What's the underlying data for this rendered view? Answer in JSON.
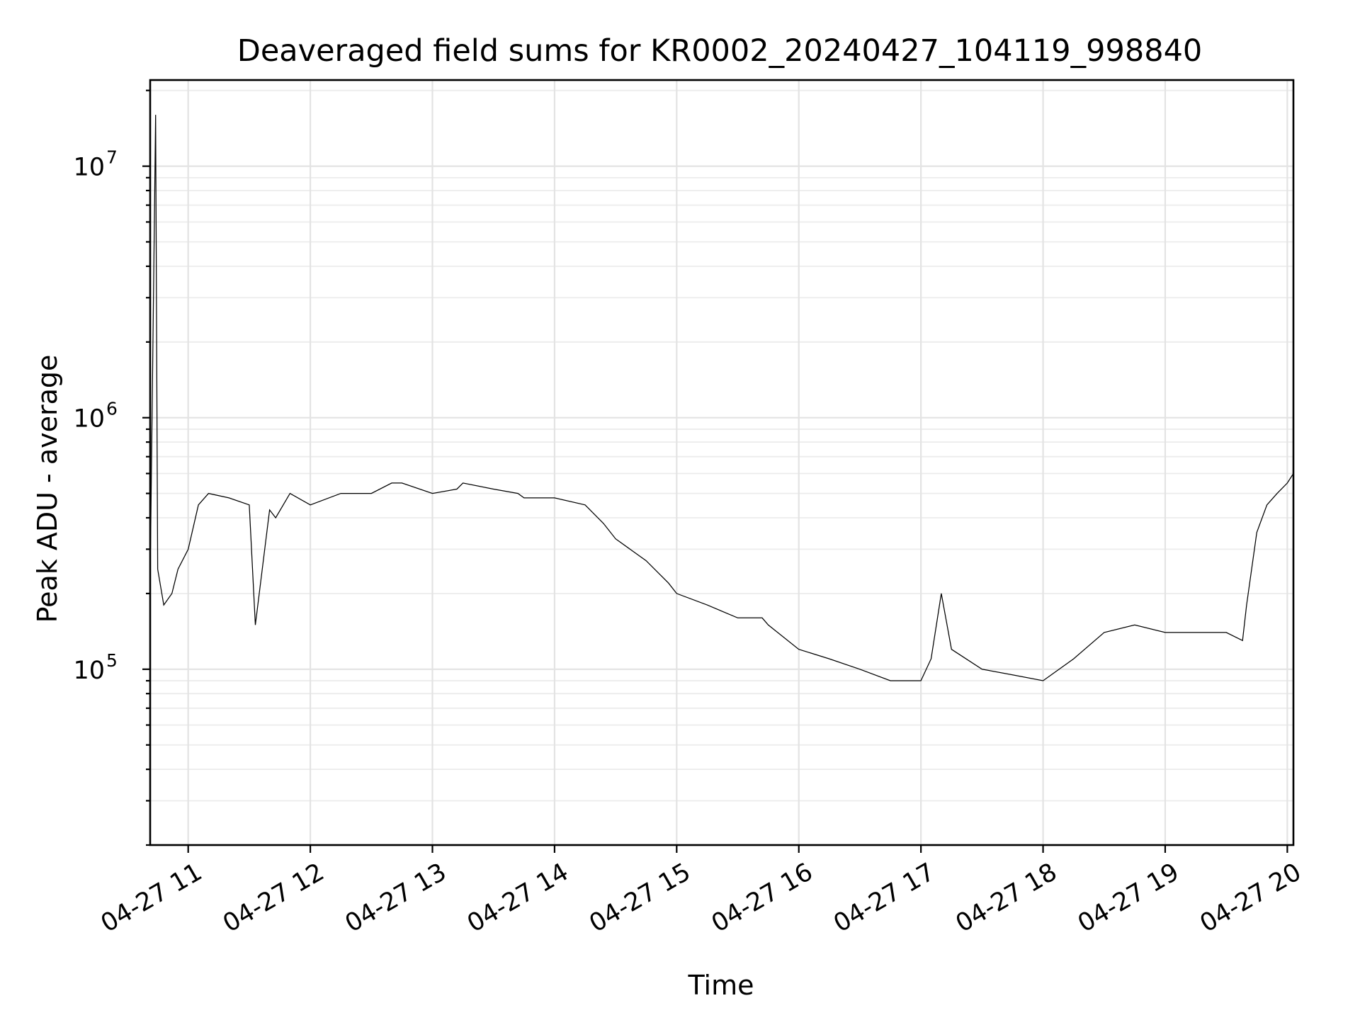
{
  "chart_data": {
    "type": "line",
    "title": "Deaveraged field sums for KR0002_20240427_104119_998840",
    "xlabel": "Time",
    "ylabel": "Peak ADU - average",
    "yscale": "log",
    "xlim": [
      "2024-04-27 10:41:19",
      "2024-04-27 20:03:00"
    ],
    "ylim": [
      20000,
      22000000
    ],
    "grid": true,
    "grid_minor": true,
    "line_color": "#000000",
    "x_ticks": [
      {
        "value": "2024-04-27 11:00",
        "label": "04-27 11"
      },
      {
        "value": "2024-04-27 12:00",
        "label": "04-27 12"
      },
      {
        "value": "2024-04-27 13:00",
        "label": "04-27 13"
      },
      {
        "value": "2024-04-27 14:00",
        "label": "04-27 14"
      },
      {
        "value": "2024-04-27 15:00",
        "label": "04-27 15"
      },
      {
        "value": "2024-04-27 16:00",
        "label": "04-27 16"
      },
      {
        "value": "2024-04-27 17:00",
        "label": "04-27 17"
      },
      {
        "value": "2024-04-27 18:00",
        "label": "04-27 18"
      },
      {
        "value": "2024-04-27 19:00",
        "label": "04-27 19"
      },
      {
        "value": "2024-04-27 20:00",
        "label": "04-27 20"
      }
    ],
    "y_ticks": [
      {
        "value": 100000,
        "base": "10",
        "exp": "5"
      },
      {
        "value": 1000000,
        "base": "10",
        "exp": "6"
      },
      {
        "value": 10000000,
        "base": "10",
        "exp": "7"
      }
    ],
    "series": [
      {
        "x": [
          "2024-04-27 10:41:30",
          "2024-04-27 10:44:00",
          "2024-04-27 10:45:00",
          "2024-04-27 10:48:00",
          "2024-04-27 10:52:00",
          "2024-04-27 10:55:00",
          "2024-04-27 11:00:00",
          "2024-04-27 11:05:00",
          "2024-04-27 11:10:00",
          "2024-04-27 11:20:00",
          "2024-04-27 11:30:00",
          "2024-04-27 11:33:00",
          "2024-04-27 11:40:00",
          "2024-04-27 11:43:00",
          "2024-04-27 11:50:00",
          "2024-04-27 12:00:00",
          "2024-04-27 12:15:00",
          "2024-04-27 12:30:00",
          "2024-04-27 12:40:00",
          "2024-04-27 12:45:00",
          "2024-04-27 13:00:00",
          "2024-04-27 13:12:00",
          "2024-04-27 13:15:00",
          "2024-04-27 13:30:00",
          "2024-04-27 13:42:00",
          "2024-04-27 13:45:00",
          "2024-04-27 14:00:00",
          "2024-04-27 14:15:00",
          "2024-04-27 14:24:00",
          "2024-04-27 14:30:00",
          "2024-04-27 14:45:00",
          "2024-04-27 14:56:00",
          "2024-04-27 15:00:00",
          "2024-04-27 15:15:00",
          "2024-04-27 15:30:00",
          "2024-04-27 15:42:00",
          "2024-04-27 15:45:00",
          "2024-04-27 16:00:00",
          "2024-04-27 16:15:00",
          "2024-04-27 16:30:00",
          "2024-04-27 16:45:00",
          "2024-04-27 17:00:00",
          "2024-04-27 17:05:00",
          "2024-04-27 17:10:00",
          "2024-04-27 17:15:00",
          "2024-04-27 17:30:00",
          "2024-04-27 17:45:00",
          "2024-04-27 18:00:00",
          "2024-04-27 18:15:00",
          "2024-04-27 18:30:00",
          "2024-04-27 18:45:00",
          "2024-04-27 19:00:00",
          "2024-04-27 19:15:00",
          "2024-04-27 19:30:00",
          "2024-04-27 19:38:00",
          "2024-04-27 19:40:00",
          "2024-04-27 19:45:00",
          "2024-04-27 19:50:00",
          "2024-04-27 19:55:00",
          "2024-04-27 20:00:00",
          "2024-04-27 20:03:00"
        ],
        "y": [
          300000,
          16000000,
          250000,
          180000,
          200000,
          250000,
          300000,
          450000,
          500000,
          480000,
          450000,
          150000,
          430000,
          400000,
          500000,
          450000,
          500000,
          500000,
          550000,
          550000,
          500000,
          520000,
          550000,
          520000,
          500000,
          480000,
          480000,
          450000,
          380000,
          330000,
          270000,
          220000,
          200000,
          180000,
          160000,
          160000,
          150000,
          120000,
          110000,
          100000,
          90000,
          90000,
          110000,
          200000,
          120000,
          100000,
          95000,
          90000,
          110000,
          140000,
          150000,
          140000,
          140000,
          140000,
          130000,
          180000,
          350000,
          450000,
          500000,
          550000,
          600000
        ]
      }
    ]
  }
}
